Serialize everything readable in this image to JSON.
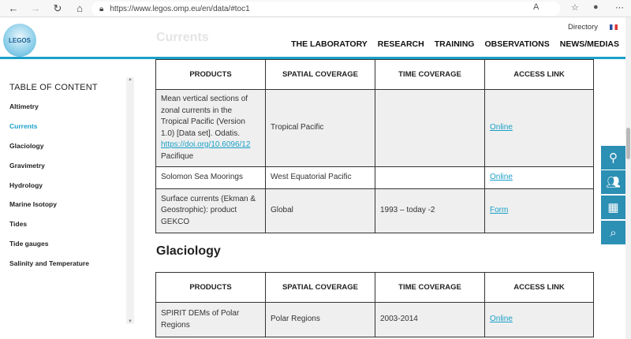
{
  "browser": {
    "url": "https://www.legos.omp.eu/en/data/#toc1"
  },
  "header": {
    "logo_text": "LEGOS",
    "ghost_title": "Currents",
    "directory": "Directory",
    "nav": [
      "THE LABORATORY",
      "RESEARCH",
      "TRAINING",
      "OBSERVATIONS",
      "NEWS/MEDIAS"
    ]
  },
  "sidebar": {
    "title": "TABLE OF CONTENT",
    "items": [
      "Altimetry",
      "Currents",
      "Glaciology",
      "Gravimetry",
      "Hydrology",
      "Marine Isotopy",
      "Tides",
      "Tide gauges",
      "Salinity and Temperature"
    ],
    "active": "Currents"
  },
  "columns": [
    "PRODUCTS",
    "SPATIAL COVERAGE",
    "TIME COVERAGE",
    "ACCESS LINK"
  ],
  "currents": {
    "rows": [
      {
        "product": "Mean vertical sections of zonal currents in the Tropical Pacific (Version 1.0) [Data set]. Odatis.",
        "doi": "https://doi.org/10.6096/12",
        "product_tail": "Pacifique",
        "spatial": "Tropical Pacific",
        "time": "",
        "link": "Online"
      },
      {
        "product": "Solomon Sea Moorings",
        "spatial": "West Equatorial Pacific",
        "time": "",
        "link": "Online"
      },
      {
        "product": "Surface currents (Ekman & Geostrophic): product GEKCO",
        "spatial": "Global",
        "time": "1993 – today -2",
        "link": "Form"
      }
    ]
  },
  "glaciology": {
    "title": "Glaciology",
    "rows": [
      {
        "product": "SPIRIT DEMs of Polar Regions",
        "spatial": "Polar Regions",
        "time": "2003-2014",
        "link": "Online"
      }
    ]
  },
  "float_buttons": [
    "map-pin-icon",
    "users-icon",
    "calendar-icon",
    "search-icon"
  ],
  "colors": {
    "accent": "#1aa0c8",
    "float": "#2c8fb4"
  }
}
